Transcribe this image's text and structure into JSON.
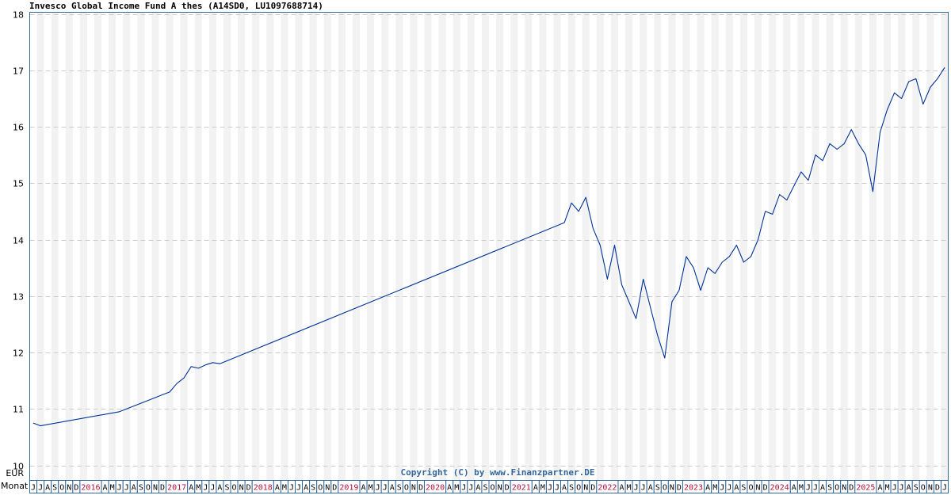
{
  "title": "Invesco Global Income Fund A thes (A14SD0, LU1097688714)",
  "copyright": "Copyright (C) by www.Finanzpartner.DE",
  "y_unit_label": "EUR",
  "x_axis_label": "Monat",
  "colors": {
    "line": "#003399",
    "axis": "#336699",
    "stripe": "#f2f2f2",
    "grid": "#cccccc",
    "year_label": "#b0103a"
  },
  "chart_data": {
    "type": "line",
    "title": "Invesco Global Income Fund A thes (A14SD0, LU1097688714)",
    "xlabel": "Monat",
    "ylabel": "EUR",
    "ylim": [
      10,
      18
    ],
    "yticks": [
      10,
      11,
      12,
      13,
      14,
      15,
      16,
      17,
      18
    ],
    "grid": true,
    "legend": null,
    "x_ticks": [
      "J",
      "J",
      "A",
      "S",
      "O",
      "N",
      "D",
      "2016",
      "A",
      "M",
      "J",
      "J",
      "A",
      "S",
      "O",
      "N",
      "D",
      "2017",
      "A",
      "M",
      "J",
      "J",
      "A",
      "S",
      "O",
      "N",
      "D",
      "2018",
      "A",
      "M",
      "J",
      "J",
      "A",
      "S",
      "O",
      "N",
      "D",
      "2019",
      "A",
      "M",
      "J",
      "J",
      "A",
      "S",
      "O",
      "N",
      "D",
      "2020",
      "A",
      "M",
      "J",
      "J",
      "A",
      "S",
      "O",
      "N",
      "D",
      "2021",
      "A",
      "M",
      "J",
      "J",
      "A",
      "S",
      "O",
      "N",
      "D",
      "2022",
      "A",
      "M",
      "J",
      "J",
      "A",
      "S",
      "O",
      "N",
      "D",
      "2023",
      "A",
      "M",
      "J",
      "J",
      "A",
      "S",
      "O",
      "N",
      "D",
      "2024",
      "A",
      "M",
      "J",
      "J",
      "A",
      "S",
      "O",
      "N",
      "D",
      "2025",
      "A",
      "M",
      "J",
      "J",
      "A",
      "S",
      "O",
      "N",
      "D",
      "J"
    ],
    "series": [
      {
        "name": "Invesco Global Income Fund A thes",
        "x": [
          "2015-06",
          "2015-07",
          "2016-06",
          "2016-12",
          "2017-01",
          "2017-02",
          "2017-03",
          "2017-04",
          "2017-05",
          "2017-06",
          "2017-07",
          "2017-08",
          "2021-08",
          "2021-09",
          "2021-10",
          "2021-11",
          "2021-12",
          "2022-01",
          "2022-02",
          "2022-03",
          "2022-04",
          "2022-05",
          "2022-06",
          "2022-07",
          "2022-08",
          "2022-09",
          "2022-10",
          "2022-11",
          "2022-12",
          "2023-01",
          "2023-02",
          "2023-03",
          "2023-04",
          "2023-05",
          "2023-06",
          "2023-07",
          "2023-08",
          "2023-09",
          "2023-10",
          "2023-11",
          "2023-12",
          "2024-01",
          "2024-02",
          "2024-03",
          "2024-04",
          "2024-05",
          "2024-06",
          "2024-07",
          "2024-08",
          "2024-09",
          "2024-10",
          "2024-11",
          "2024-12",
          "2025-01",
          "2025-02",
          "2025-03",
          "2025-04",
          "2025-05",
          "2025-06",
          "2025-07",
          "2025-08",
          "2025-09",
          "2025-10",
          "2025-11",
          "2025-12",
          "2026-01"
        ],
        "values": [
          10.75,
          10.7,
          10.95,
          11.25,
          11.3,
          11.45,
          11.55,
          11.75,
          11.72,
          11.78,
          11.82,
          11.8,
          14.3,
          14.65,
          14.5,
          14.75,
          14.2,
          13.9,
          13.3,
          13.9,
          13.2,
          12.9,
          12.6,
          13.3,
          12.8,
          12.3,
          11.9,
          12.9,
          13.1,
          13.7,
          13.5,
          13.1,
          13.5,
          13.4,
          13.6,
          13.7,
          13.9,
          13.6,
          13.7,
          14.0,
          14.5,
          14.45,
          14.8,
          14.7,
          14.95,
          15.2,
          15.05,
          15.5,
          15.4,
          15.7,
          15.6,
          15.7,
          15.95,
          15.7,
          15.5,
          14.85,
          15.9,
          16.3,
          16.6,
          16.5,
          16.8,
          16.85,
          16.4,
          16.7,
          16.85,
          17.05
        ]
      }
    ]
  }
}
